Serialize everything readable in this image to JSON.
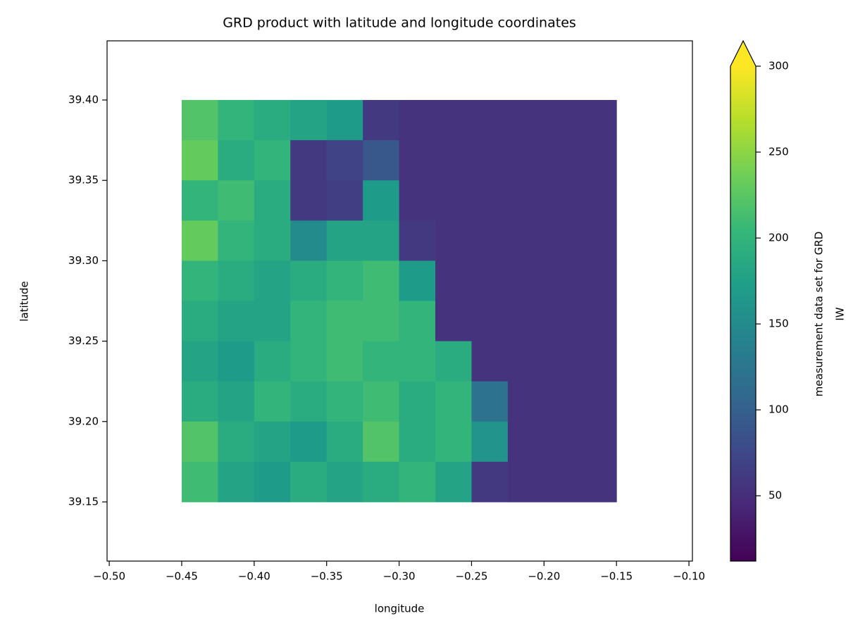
{
  "chart_data": {
    "type": "heatmap",
    "title": "GRD product with latitude and longitude coordinates",
    "x_label": "longitude",
    "y_label": "latitude",
    "colorbar_label": [
      "measurement data set for GRD",
      "IW"
    ],
    "colormap": "viridis",
    "colorbar_extend": "max",
    "xlim": [
      -0.5015,
      -0.0976
    ],
    "ylim": [
      39.1132,
      39.4368
    ],
    "clim": [
      12,
      300
    ],
    "xticks": [
      {
        "value": -0.5,
        "label": "−0.50"
      },
      {
        "value": -0.45,
        "label": "−0.45"
      },
      {
        "value": -0.4,
        "label": "−0.40"
      },
      {
        "value": -0.35,
        "label": "−0.35"
      },
      {
        "value": -0.3,
        "label": "−0.30"
      },
      {
        "value": -0.25,
        "label": "−0.25"
      },
      {
        "value": -0.2,
        "label": "−0.20"
      },
      {
        "value": -0.15,
        "label": "−0.15"
      },
      {
        "value": -0.1,
        "label": "−0.10"
      }
    ],
    "yticks": [
      {
        "value": 39.15,
        "label": "39.15"
      },
      {
        "value": 39.2,
        "label": "39.20"
      },
      {
        "value": 39.25,
        "label": "39.25"
      },
      {
        "value": 39.3,
        "label": "39.30"
      },
      {
        "value": 39.35,
        "label": "39.35"
      },
      {
        "value": 39.4,
        "label": "39.40"
      }
    ],
    "cticks": [
      50,
      100,
      150,
      200,
      250,
      300
    ],
    "x": [
      -0.4375,
      -0.4125,
      -0.3875,
      -0.3625,
      -0.3375,
      -0.3125,
      -0.2875,
      -0.2625,
      -0.2375,
      -0.2125,
      -0.1875,
      -0.1625
    ],
    "y": [
      39.3875,
      39.3625,
      39.3375,
      39.3125,
      39.2875,
      39.2625,
      39.2375,
      39.2125,
      39.1875,
      39.1625
    ],
    "z": [
      [
        220,
        200,
        190,
        180,
        170,
        60,
        55,
        55,
        55,
        55,
        55,
        55
      ],
      [
        230,
        190,
        200,
        60,
        70,
        90,
        55,
        55,
        55,
        55,
        55,
        55
      ],
      [
        200,
        210,
        190,
        60,
        65,
        170,
        55,
        55,
        55,
        55,
        55,
        55
      ],
      [
        230,
        200,
        190,
        150,
        180,
        180,
        60,
        55,
        55,
        55,
        55,
        55
      ],
      [
        200,
        190,
        180,
        190,
        200,
        210,
        170,
        55,
        55,
        55,
        55,
        55
      ],
      [
        190,
        180,
        180,
        200,
        210,
        210,
        200,
        55,
        55,
        55,
        55,
        55
      ],
      [
        180,
        170,
        190,
        200,
        210,
        200,
        200,
        190,
        55,
        55,
        55,
        55
      ],
      [
        190,
        180,
        200,
        190,
        200,
        210,
        190,
        200,
        120,
        55,
        55,
        55
      ],
      [
        220,
        190,
        180,
        170,
        190,
        220,
        190,
        200,
        160,
        55,
        55,
        55
      ],
      [
        210,
        180,
        170,
        190,
        180,
        190,
        200,
        180,
        60,
        55,
        55,
        55
      ]
    ]
  }
}
